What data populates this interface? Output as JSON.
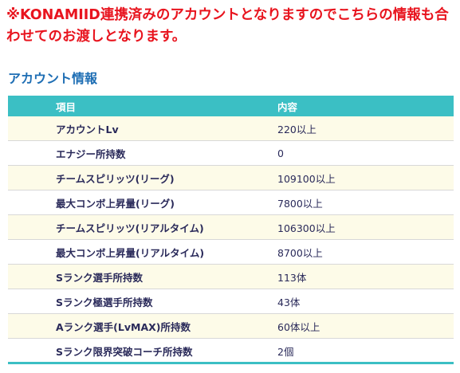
{
  "notice": {
    "text": "※KONAMIID連携済みのアカウントとなりますのでこちらの情報も合わせてのお渡しとなります。"
  },
  "section": {
    "title": "アカウント情報"
  },
  "table": {
    "headers": [
      "項目",
      "内容"
    ],
    "rows": [
      {
        "item": "アカウントLv",
        "value": "220以上"
      },
      {
        "item": "エナジー所持数",
        "value": "0"
      },
      {
        "item": "チームスピリッツ(リーグ)",
        "value": "109100以上"
      },
      {
        "item": "最大コンボ上昇量(リーグ)",
        "value": "7800以上"
      },
      {
        "item": "チームスピリッツ(リアルタイム)",
        "value": "106300以上"
      },
      {
        "item": "最大コンボ上昇量(リアルタイム)",
        "value": "8700以上"
      },
      {
        "item": "Sランク選手所持数",
        "value": "113体"
      },
      {
        "item": "Sランク極選手所持数",
        "value": "43体"
      },
      {
        "item": "Aランク選手(LvMAX)所持数",
        "value": "60体以上"
      },
      {
        "item": "Sランク限界突破コーチ所持数",
        "value": "2個"
      }
    ]
  },
  "colors": {
    "notice": "#e8141e",
    "title": "#1e6eb4",
    "header_bg": "#3bbfc4",
    "row_alt_bg": "#fdfbe8"
  }
}
